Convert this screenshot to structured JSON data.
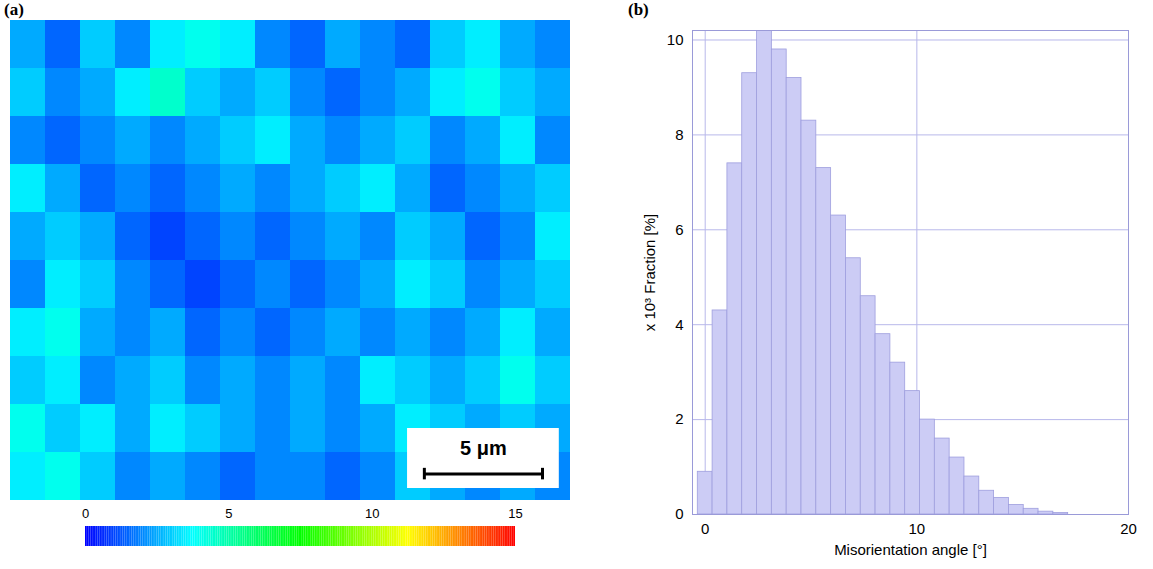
{
  "chart_data": [
    {
      "type": "heatmap",
      "panel": "(a)",
      "tick_labels": false,
      "xlim": [
        0,
        23.7
      ],
      "ylim": [
        0,
        20.3
      ],
      "cells": [
        [
          2.5,
          1.5,
          3.0,
          2.0,
          3.5,
          4.0,
          3.5,
          2.0,
          1.5,
          2.5,
          2.0,
          1.5,
          3.0,
          3.5,
          2.5,
          2.0
        ],
        [
          3.0,
          2.0,
          2.5,
          3.5,
          4.5,
          3.0,
          2.5,
          3.0,
          2.0,
          1.5,
          2.0,
          2.5,
          3.5,
          4.0,
          3.0,
          2.5
        ],
        [
          2.0,
          1.5,
          2.0,
          2.5,
          2.0,
          2.5,
          3.0,
          3.5,
          2.5,
          2.0,
          2.5,
          3.0,
          2.0,
          2.5,
          3.5,
          2.0
        ],
        [
          3.5,
          2.5,
          1.5,
          2.0,
          1.5,
          2.0,
          2.5,
          2.0,
          2.5,
          3.0,
          3.5,
          2.5,
          1.5,
          2.0,
          2.5,
          3.0
        ],
        [
          2.5,
          3.0,
          2.5,
          1.5,
          1.0,
          1.5,
          2.0,
          1.5,
          2.0,
          2.5,
          2.0,
          3.0,
          2.5,
          1.5,
          2.0,
          3.5
        ],
        [
          2.0,
          3.5,
          3.0,
          2.0,
          1.5,
          1.0,
          1.5,
          2.0,
          1.5,
          2.0,
          2.5,
          3.5,
          3.0,
          2.0,
          2.5,
          3.0
        ],
        [
          3.5,
          4.0,
          2.5,
          2.0,
          2.5,
          1.5,
          2.0,
          1.5,
          2.0,
          2.5,
          2.0,
          2.5,
          2.0,
          2.5,
          3.5,
          2.5
        ],
        [
          3.0,
          3.5,
          2.0,
          2.5,
          3.0,
          2.0,
          2.5,
          2.0,
          2.5,
          2.0,
          3.5,
          3.0,
          2.5,
          3.0,
          4.0,
          3.0
        ],
        [
          4.0,
          3.0,
          3.5,
          2.5,
          3.5,
          3.0,
          2.5,
          2.0,
          2.5,
          2.0,
          2.5,
          3.5,
          3.0,
          2.5,
          3.0,
          2.5
        ],
        [
          3.5,
          4.0,
          3.0,
          2.0,
          2.5,
          2.0,
          1.5,
          2.0,
          2.0,
          1.5,
          2.0,
          3.0,
          2.5,
          2.0,
          2.5,
          2.0
        ]
      ],
      "colorbar": {
        "range": [
          0,
          15
        ],
        "ticks": [
          0,
          5,
          10,
          15
        ]
      },
      "scale_bar": {
        "value": 5,
        "label": "5 μm"
      }
    },
    {
      "type": "histogram",
      "panel": "(b)",
      "x_label": "Misorientation angle [°]",
      "y_label": "x 10³ Fraction [%]",
      "bins": [
        -0.35,
        0.35,
        1.05,
        1.75,
        2.45,
        3.15,
        3.85,
        4.55,
        5.25,
        5.95,
        6.65,
        7.35,
        8.05,
        8.75,
        9.45,
        10.15,
        10.85,
        11.55,
        12.25,
        12.95,
        13.65,
        14.35,
        15.05,
        15.75,
        16.45,
        17.15
      ],
      "values": [
        0.9,
        4.3,
        7.4,
        9.3,
        10.2,
        9.8,
        9.2,
        8.3,
        7.3,
        6.3,
        5.4,
        4.6,
        3.8,
        3.2,
        2.6,
        2.0,
        1.6,
        1.2,
        0.8,
        0.5,
        0.35,
        0.2,
        0.12,
        0.06,
        0.03
      ],
      "color": "#ccccf5",
      "xlim": [
        -0.6,
        20
      ],
      "ylim": [
        0,
        10.2
      ],
      "xticks": [
        0,
        10,
        20
      ],
      "yticks": [
        0,
        2,
        4,
        6,
        8,
        10
      ],
      "grid": true
    }
  ]
}
